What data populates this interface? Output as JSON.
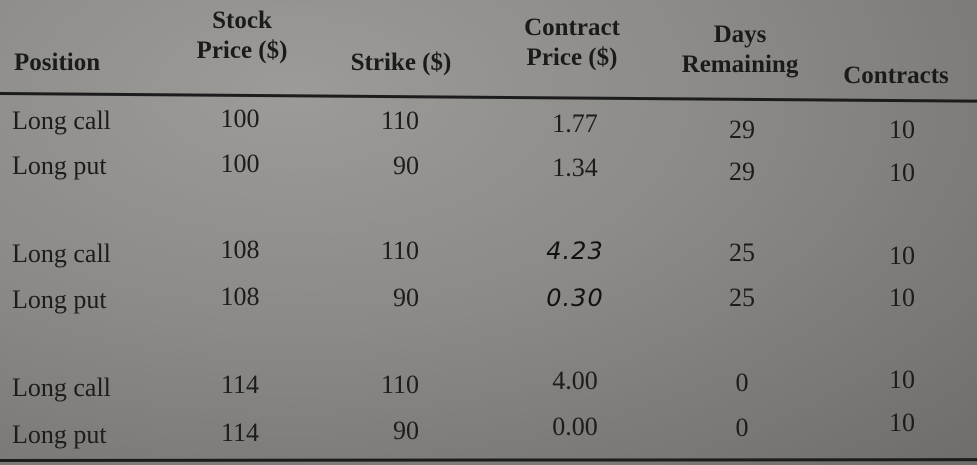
{
  "table": {
    "headers": {
      "position": "Position",
      "stock_price_line1": "Stock",
      "stock_price_line2": "Price ($)",
      "strike": "Strike ($)",
      "contract_price_line1": "Contract",
      "contract_price_line2": "Price ($)",
      "days_line1": "Days",
      "days_line2": "Remaining",
      "contracts": "Contracts"
    },
    "rows": [
      {
        "position": "Long call",
        "stock_price": "100",
        "strike": "110",
        "contract_price": "1.77",
        "days_remaining": "29",
        "contracts": "10"
      },
      {
        "position": "Long put",
        "stock_price": "100",
        "strike": "90",
        "contract_price": "1.34",
        "days_remaining": "29",
        "contracts": "10"
      },
      {
        "position": "Long call",
        "stock_price": "108",
        "strike": "110",
        "contract_price": "4.23",
        "days_remaining": "25",
        "contracts": "10"
      },
      {
        "position": "Long put",
        "stock_price": "108",
        "strike": "90",
        "contract_price": "0.30",
        "days_remaining": "25",
        "contracts": "10"
      },
      {
        "position": "Long call",
        "stock_price": "114",
        "strike": "110",
        "contract_price": "4.00",
        "days_remaining": "0",
        "contracts": "10"
      },
      {
        "position": "Long put",
        "stock_price": "114",
        "strike": "90",
        "contract_price": "0.00",
        "days_remaining": "0",
        "contracts": "10"
      }
    ]
  }
}
